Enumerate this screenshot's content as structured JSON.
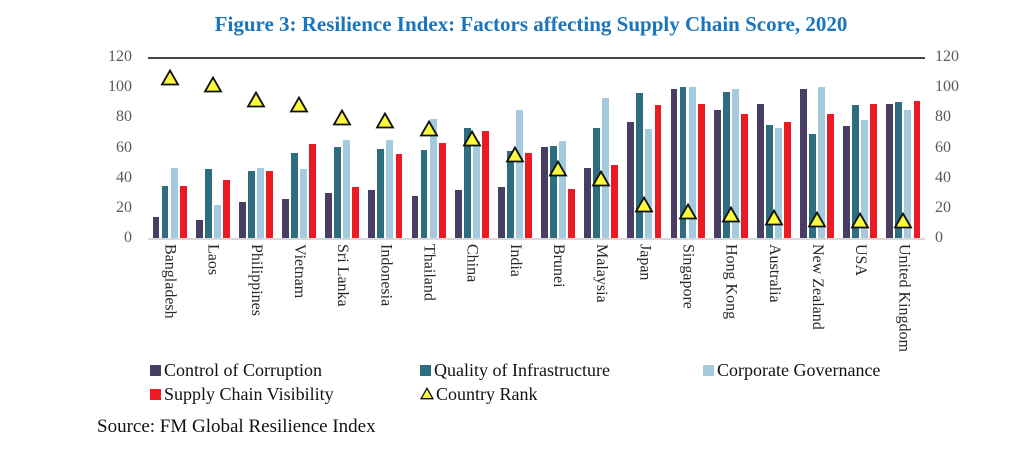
{
  "chart_data": {
    "type": "bar",
    "title": "Figure 3: Resilience Index: Factors affecting Supply Chain Score, 2020",
    "categories": [
      "Bangladesh",
      "Laos",
      "Philippines",
      "Vietnam",
      "Sri Lanka",
      "Indonesia",
      "Thailand",
      "China",
      "India",
      "Brunei",
      "Malaysia",
      "Japan",
      "Singapore",
      "Hong Kong",
      "Australia",
      "New Zealand",
      "USA",
      "United Kingdom"
    ],
    "series": [
      {
        "name": "Control of Corruption",
        "color": "#483d63",
        "values": [
          14,
          12,
          24,
          26,
          30,
          32,
          28,
          32,
          34,
          61,
          47,
          78,
          100,
          86,
          90,
          100,
          75,
          90
        ]
      },
      {
        "name": "Quality of Infrastructure",
        "color": "#2e6c80",
        "values": [
          35,
          46,
          45,
          57,
          61,
          60,
          59,
          74,
          58,
          62,
          74,
          97,
          101,
          98,
          76,
          70,
          89,
          91
        ]
      },
      {
        "name": "Corporate Governance",
        "color": "#a4cade",
        "values": [
          47,
          22,
          47,
          46,
          66,
          66,
          80,
          65,
          86,
          65,
          94,
          73,
          101,
          100,
          74,
          101,
          79,
          86
        ]
      },
      {
        "name": "Supply Chain Visibility",
        "color": "#ec1b23",
        "values": [
          35,
          39,
          45,
          63,
          34,
          56,
          64,
          72,
          57,
          33,
          49,
          89,
          90,
          83,
          78,
          83,
          90,
          92
        ]
      }
    ],
    "marker_series": {
      "name": "Country Rank",
      "color": "#fbf93c",
      "outline": "#111111",
      "values": [
        108,
        103,
        93,
        90,
        81,
        79,
        74,
        67,
        56,
        47,
        40,
        23,
        18,
        16,
        14,
        13,
        12,
        12
      ]
    },
    "xlabel": "",
    "ylabel": "",
    "ylim": [
      0,
      120
    ],
    "yticks": [
      0,
      20,
      40,
      60,
      80,
      100,
      120
    ],
    "grid": false,
    "legend_position": "bottom"
  },
  "source": "Source: FM Global Resilience Index",
  "style": {
    "title_color": "#1b75bc",
    "axis_text_color": "#595959",
    "category_text_color": "#262626"
  }
}
